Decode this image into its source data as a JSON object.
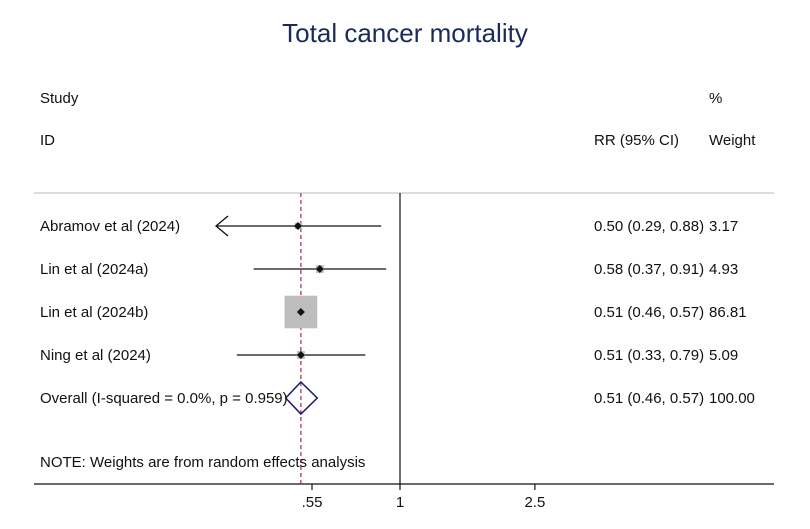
{
  "chart_data": {
    "type": "forest",
    "title": "Total cancer mortality",
    "header": {
      "study": "Study",
      "id": "ID",
      "ci": "RR (95% CI)",
      "weight_top": "%",
      "weight_bottom": "Weight"
    },
    "x_scale": "log",
    "reference_line": 1,
    "summary_line": 0.51,
    "x_ticks": [
      {
        "value": 0.55,
        "label": ".55"
      },
      {
        "value": 1,
        "label": "1"
      },
      {
        "value": 2.5,
        "label": "2.5"
      }
    ],
    "studies": [
      {
        "label": "Abramov et al (2024)",
        "rr": 0.5,
        "lo": 0.29,
        "hi": 0.88,
        "ci_text": "0.50 (0.29, 0.88)",
        "weight": "3.17",
        "w": 3.17,
        "arrow_left": true
      },
      {
        "label": "Lin et al (2024a)",
        "rr": 0.58,
        "lo": 0.37,
        "hi": 0.91,
        "ci_text": "0.58 (0.37, 0.91)",
        "weight": "4.93",
        "w": 4.93,
        "arrow_left": false
      },
      {
        "label": "Lin et al (2024b)",
        "rr": 0.51,
        "lo": 0.46,
        "hi": 0.57,
        "ci_text": "0.51 (0.46, 0.57)",
        "weight": "86.81",
        "w": 86.81,
        "arrow_left": false
      },
      {
        "label": "Ning et al (2024)",
        "rr": 0.51,
        "lo": 0.33,
        "hi": 0.79,
        "ci_text": "0.51 (0.33, 0.79)",
        "weight": "5.09",
        "w": 5.09,
        "arrow_left": false
      }
    ],
    "overall": {
      "label": "Overall  (I-squared = 0.0%, p = 0.959)",
      "rr": 0.51,
      "lo": 0.46,
      "hi": 0.57,
      "ci_text": "0.51 (0.46, 0.57)",
      "weight": "100.00"
    },
    "note": "NOTE: Weights are from random effects analysis",
    "colors": {
      "title": "#1a2a5a",
      "diamond": "#1a1a6e",
      "box": "#bdbdbd",
      "summary_line": "#a0304a",
      "separator": "#c8c8c8"
    }
  }
}
